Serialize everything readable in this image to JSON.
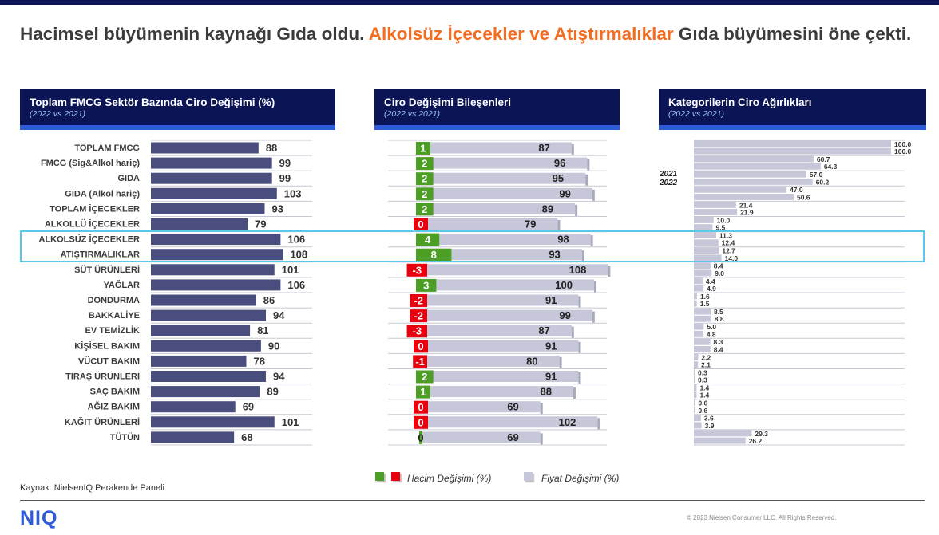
{
  "headline": {
    "part1": "Hacimsel büyümenin kaynağı Gıda oldu. ",
    "part2": "Alkolsüz İçecekler ve Atıştırmalıklar",
    "part3": " Gıda büyümesini öne çekti."
  },
  "panels": {
    "left": {
      "title": "Toplam FMCG Sektör Bazında Ciro Değişimi (%)",
      "subtitle": "(2022 vs 2021)"
    },
    "middle": {
      "title": "Ciro Değişimi Bileşenleri",
      "subtitle": "(2022 vs 2021)"
    },
    "right": {
      "title": "Kategorilerin Ciro Ağırlıkları",
      "subtitle": "(2022 vs 2021)"
    }
  },
  "colors": {
    "navy": "#0b1556",
    "accent_blue": "#2e5bd8",
    "bar_navy": "#4a4e7e",
    "bar_gray": "#c6c7d9",
    "green": "#4d9e24",
    "red": "#e8000f",
    "orange": "#f36d21",
    "highlight": "#5ac8e6"
  },
  "chart_data": [
    {
      "type": "bar",
      "title": "Toplam FMCG Sektör Bazında Ciro Değişimi (%)",
      "subtitle": "(2022 vs 2021)",
      "categories": [
        "TOPLAM FMCG",
        "FMCG (Sig&Alkol hariç)",
        "GIDA",
        "GIDA (Alkol hariç)",
        "TOPLAM İÇECEKLER",
        "ALKOLLÜ İÇECEKLER",
        "ALKOLSÜZ İÇECEKLER",
        "ATIŞTIRMALIKLAR",
        "SÜT ÜRÜNLERİ",
        "YAĞLAR",
        "DONDURMA",
        "BAKKALİYE",
        "EV TEMİZLİK",
        "KİŞİSEL BAKIM",
        "VÜCUT BAKIM",
        "TIRAŞ ÜRÜNLERİ",
        "SAÇ BAKIM",
        "AĞIZ BAKIM",
        "KAĞIT ÜRÜNLERİ",
        "TÜTÜN"
      ],
      "values": [
        88,
        99,
        99,
        103,
        93,
        79,
        106,
        108,
        101,
        106,
        86,
        94,
        81,
        90,
        78,
        94,
        89,
        69,
        101,
        68
      ]
    },
    {
      "type": "bar",
      "title": "Ciro Değişimi Bileşenleri",
      "subtitle": "(2022 vs 2021)",
      "series": [
        {
          "name": "Hacim Değişimi (%)",
          "values": [
            1,
            2,
            2,
            2,
            2,
            0,
            4,
            8,
            -3,
            3,
            -2,
            -2,
            -3,
            0,
            -1,
            2,
            1,
            0,
            0,
            0
          ]
        },
        {
          "name": "Fiyat Değişimi (%)",
          "values": [
            87,
            96,
            95,
            99,
            89,
            79,
            98,
            93,
            108,
            100,
            91,
            99,
            87,
            91,
            80,
            91,
            88,
            69,
            102,
            69
          ]
        }
      ]
    },
    {
      "type": "bar",
      "title": "Kategorilerin Ciro Ağırlıkları",
      "subtitle": "(2022 vs 2021)",
      "legend": [
        "2021",
        "2022"
      ],
      "series": [
        {
          "name": "2021",
          "values": [
            100.0,
            60.7,
            57.0,
            47.0,
            21.4,
            10.0,
            11.3,
            12.7,
            8.4,
            4.4,
            1.6,
            8.5,
            5.0,
            8.3,
            2.2,
            0.3,
            1.4,
            0.6,
            3.6,
            29.3
          ]
        },
        {
          "name": "2022",
          "values": [
            100.0,
            64.3,
            60.2,
            50.6,
            21.9,
            9.5,
            12.4,
            14.0,
            9.0,
            4.9,
            1.5,
            8.8,
            4.8,
            8.4,
            2.1,
            0.3,
            1.4,
            0.6,
            3.9,
            26.2
          ]
        }
      ]
    }
  ],
  "legend": {
    "volume_label": "Hacim Değişimi (%)",
    "price_label": "Fiyat Değişimi (%)"
  },
  "footer": {
    "source": "Kaynak: NielsenIQ Perakende Paneli",
    "logo": "NIQ",
    "copyright": "© 2023 Nielsen Consumer LLC. All Rights Reserved."
  }
}
